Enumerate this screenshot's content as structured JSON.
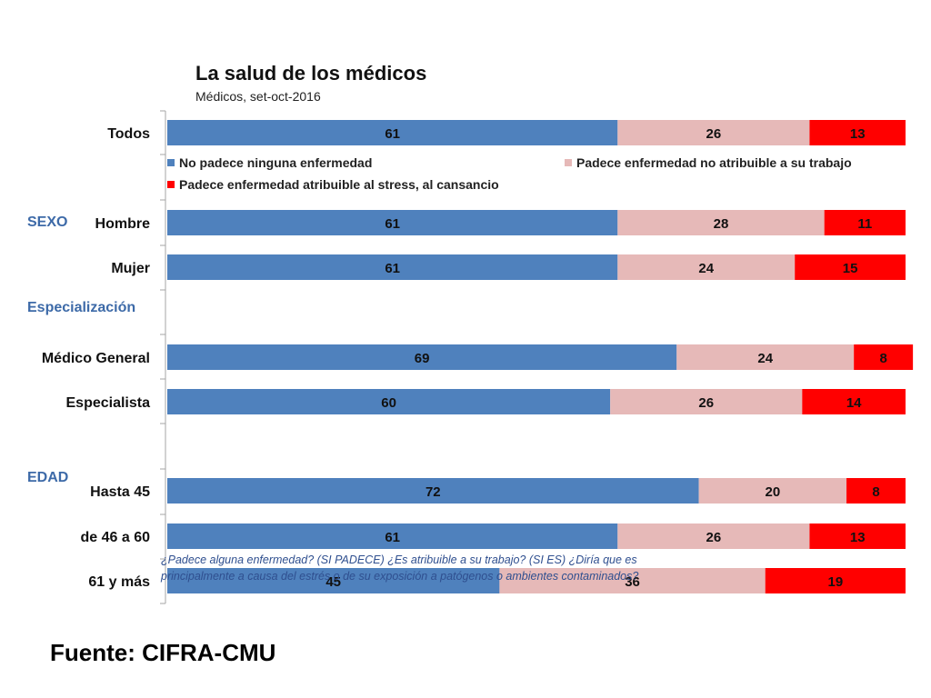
{
  "chart_data": {
    "type": "bar",
    "orientation": "horizontal",
    "stacked": true,
    "title": "La salud de los médicos",
    "subtitle": "Médicos, set-oct-2016",
    "categories": [
      "Todos",
      "Hombre",
      "Mujer",
      "Médico General",
      "Especialista",
      "Hasta 45",
      "de 46 a 60",
      "61 y más"
    ],
    "groups": [
      {
        "label": "SEXO",
        "categories": [
          "Hombre",
          "Mujer"
        ]
      },
      {
        "label": "Especialización",
        "categories": [
          "Médico General",
          "Especialista"
        ]
      },
      {
        "label": "EDAD",
        "categories": [
          "Hasta 45",
          "de 46 a 60",
          "61 y más"
        ]
      }
    ],
    "series": [
      {
        "name": "No padece ninguna enfermedad",
        "color": "#4f81bd",
        "values": [
          61,
          61,
          61,
          69,
          60,
          72,
          61,
          45
        ]
      },
      {
        "name": "Padece enfermedad no atribuible a su trabajo",
        "color": "#e6b9b8",
        "values": [
          26,
          28,
          24,
          24,
          26,
          20,
          26,
          36
        ]
      },
      {
        "name": "Padece enfermedad atribuible al stress, al cansancio",
        "color": "#ff0000",
        "values": [
          13,
          11,
          15,
          8,
          14,
          8,
          13,
          19
        ]
      }
    ],
    "xlim": [
      0,
      100
    ],
    "grid": false,
    "legend_position": "below first bar"
  },
  "note": "¿Padece alguna enfermedad? (SI PADECE)  ¿Es atribuible a su trabajo? (SI ES) ¿Diría que es principalmente a causa del estrés o de su exposición a patógenos o ambientes contaminados?",
  "source": "Fuente: CIFRA-CMU"
}
